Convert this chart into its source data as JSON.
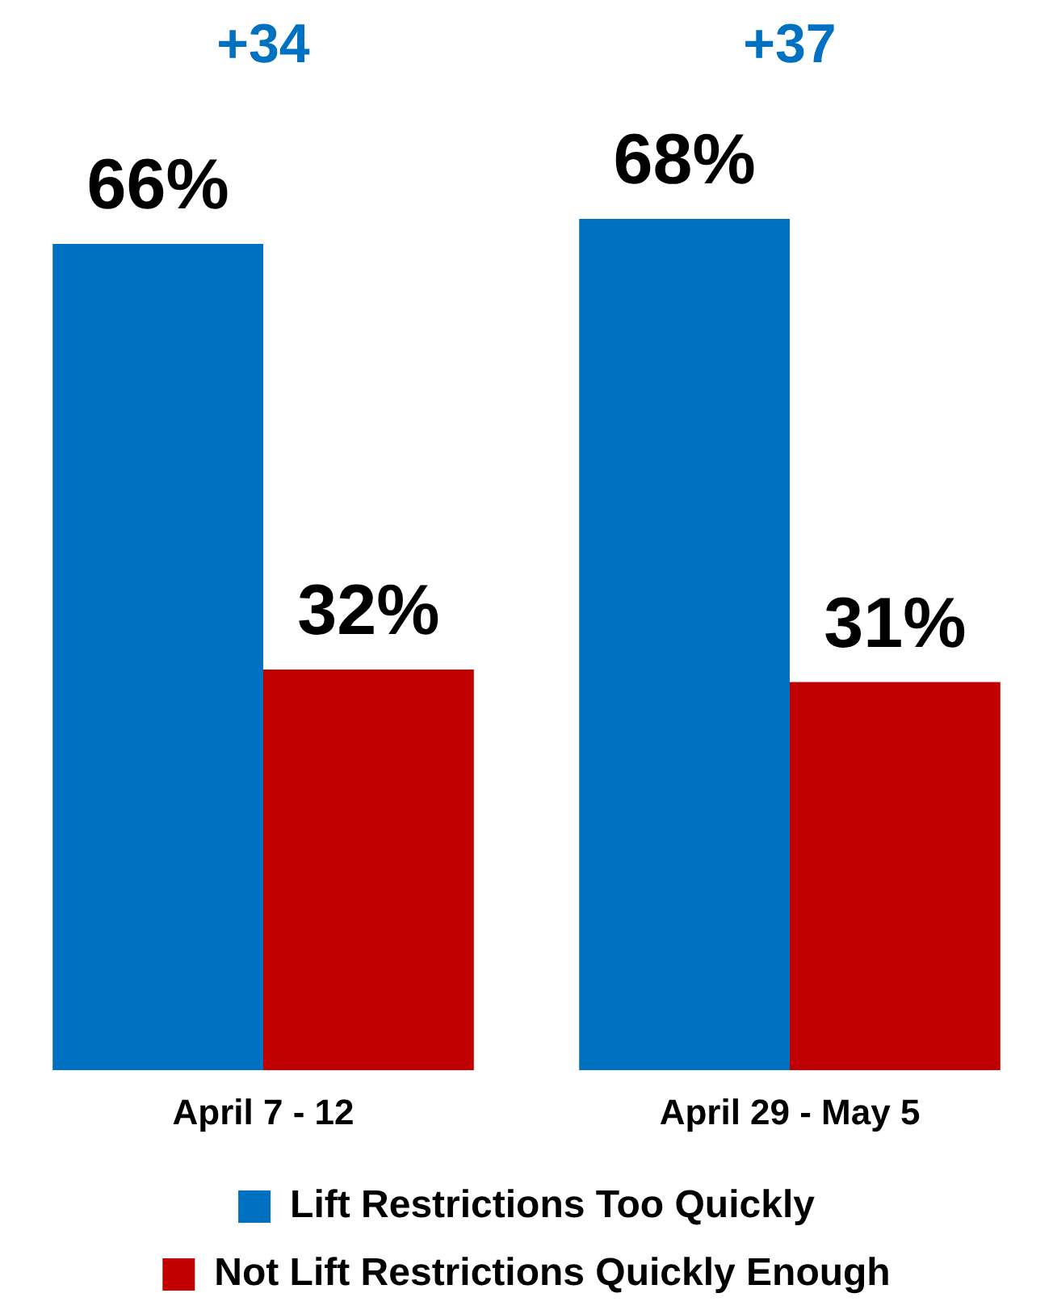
{
  "chart_data": {
    "type": "bar",
    "categories": [
      "April 7 - 12",
      "April 29 - May 5"
    ],
    "series": [
      {
        "name": "Lift Restrictions Too Quickly",
        "color": "#0070c0",
        "values": [
          66,
          68
        ],
        "value_labels": [
          "66%",
          "68%"
        ]
      },
      {
        "name": "Not Lift Restrictions Quickly Enough",
        "color": "#c00000",
        "values": [
          32,
          31
        ],
        "value_labels": [
          "32%",
          "31%"
        ]
      }
    ],
    "grid": false,
    "legend": "bottom",
    "annotations": [
      "+34",
      "+37"
    ]
  }
}
